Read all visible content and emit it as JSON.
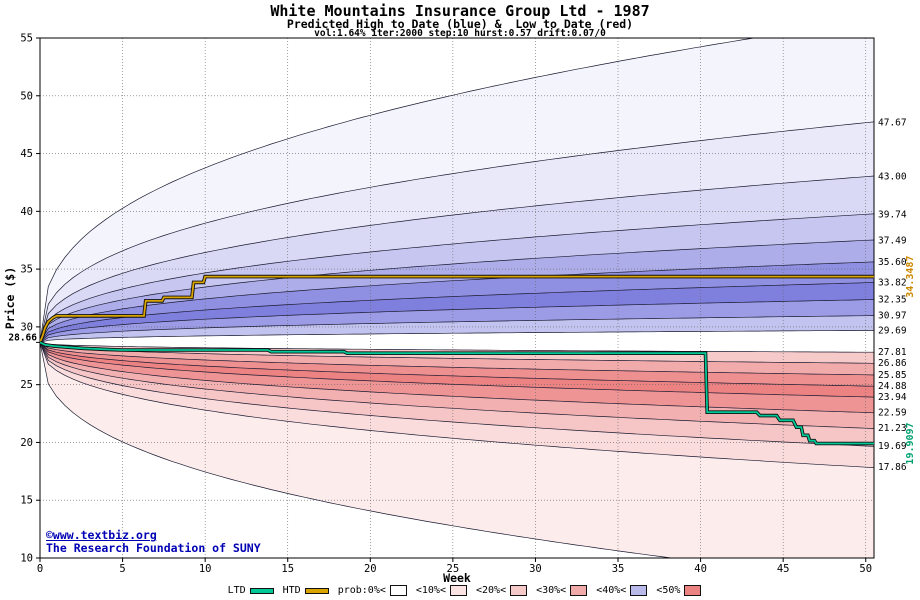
{
  "header": {
    "title": "White Mountains Insurance Group Ltd - 1987",
    "subtitle": "Predicted High to Date (blue) &  Low to Date (red)",
    "params": "vol:1.64% iter:2000 step:10 hurst:0.57 drift:0.07/0"
  },
  "watermark": {
    "line1": "©www.textbiz.org",
    "line2": "The Research Foundation of SUNY"
  },
  "legend": {
    "items": [
      {
        "label": "LTD",
        "swatch": "line",
        "color": "#00c896"
      },
      {
        "label": "HTD",
        "swatch": "line",
        "color": "#d9a300"
      },
      {
        "label": "prob:0%<",
        "swatch": "box",
        "color": "#ffffff"
      },
      {
        "label": "<10%<",
        "swatch": "box",
        "color": "#fbe3e3"
      },
      {
        "label": "<20%<",
        "swatch": "box",
        "color": "#f6c9c9"
      },
      {
        "label": "<30%<",
        "swatch": "box",
        "color": "#f1aaaa"
      },
      {
        "label": "<40%<",
        "swatch": "box",
        "color": "#b9b9ea"
      },
      {
        "label": "<50%",
        "swatch": "box",
        "color": "#ec8383"
      }
    ]
  },
  "chart_data": {
    "type": "area",
    "title": "White Mountains Insurance Group Ltd - 1987",
    "subtitle": "Predicted High to Date (blue) &  Low to Date (red)",
    "xlabel": "Week",
    "ylabel": "Price ($)",
    "xlim": [
      0,
      50.5
    ],
    "ylim": [
      10,
      55
    ],
    "x_ticks": [
      0,
      5,
      10,
      15,
      20,
      25,
      30,
      35,
      40,
      45,
      50
    ],
    "y_ticks": [
      10,
      15,
      20,
      25,
      30,
      35,
      40,
      45,
      50,
      55
    ],
    "grid": true,
    "legend_position": "bottom",
    "start_price": 28.66,
    "start_price_label": "28.66",
    "shape_exponent": 0.38,
    "high_boundaries": [
      29.69,
      30.97,
      32.35,
      33.82,
      35.6,
      37.49,
      39.74,
      43.0,
      47.67,
      56.5
    ],
    "high_band_colors": [
      "#c3c3f0",
      "#9b9be6",
      "#7f7fdd",
      "#9090e2",
      "#adade9",
      "#c6c6f0",
      "#d9d9f5",
      "#e9e9fa",
      "#f4f4fc"
    ],
    "low_boundaries": [
      27.81,
      26.86,
      25.85,
      24.88,
      23.94,
      22.59,
      21.23,
      19.69,
      17.86,
      8.0
    ],
    "low_band_colors": [
      "#f7caca",
      "#f2abab",
      "#ee9090",
      "#ec8282",
      "#ee9494",
      "#f2b0b0",
      "#f6c6c6",
      "#fadcdc",
      "#fcecec"
    ],
    "right_value_labels": [
      "47.67",
      "43.00",
      "39.74",
      "37.49",
      "35.60",
      "33.82",
      "32.35",
      "30.97",
      "29.69",
      "27.81",
      "26.86",
      "25.85",
      "24.88",
      "23.94",
      "22.59",
      "21.23",
      "19.69",
      "17.86"
    ],
    "htd_line": {
      "name": "HTD",
      "color": "#d9a300",
      "final_label": "34.3487",
      "final_label_color": "#cc8800",
      "points": [
        [
          0,
          28.66
        ],
        [
          0.15,
          29.2
        ],
        [
          0.3,
          29.9
        ],
        [
          0.5,
          30.45
        ],
        [
          0.8,
          30.8
        ],
        [
          1,
          30.95
        ],
        [
          6.3,
          30.95
        ],
        [
          6.4,
          32.25
        ],
        [
          7.4,
          32.25
        ],
        [
          7.5,
          32.55
        ],
        [
          9.2,
          32.55
        ],
        [
          9.3,
          33.85
        ],
        [
          9.9,
          33.85
        ],
        [
          10,
          34.3487
        ],
        [
          50.5,
          34.3487
        ]
      ]
    },
    "ltd_line": {
      "name": "LTD",
      "color": "#00c896",
      "final_label": "19.9097",
      "final_label_color": "#00a070",
      "points": [
        [
          0,
          28.66
        ],
        [
          0.3,
          28.45
        ],
        [
          0.8,
          28.35
        ],
        [
          1.6,
          28.25
        ],
        [
          2.6,
          28.15
        ],
        [
          4,
          28.05
        ],
        [
          5,
          28.0
        ],
        [
          13.8,
          28.0
        ],
        [
          14,
          27.85
        ],
        [
          18.4,
          27.85
        ],
        [
          18.6,
          27.72
        ],
        [
          40.3,
          27.72
        ],
        [
          40.4,
          22.62
        ],
        [
          43.4,
          22.62
        ],
        [
          43.6,
          22.32
        ],
        [
          44.6,
          22.32
        ],
        [
          44.8,
          21.92
        ],
        [
          45.6,
          21.92
        ],
        [
          45.8,
          21.32
        ],
        [
          46.1,
          21.32
        ],
        [
          46.2,
          20.62
        ],
        [
          46.5,
          20.62
        ],
        [
          46.6,
          20.15
        ],
        [
          46.9,
          20.15
        ],
        [
          47,
          19.9097
        ],
        [
          50.5,
          19.9097
        ]
      ]
    }
  }
}
